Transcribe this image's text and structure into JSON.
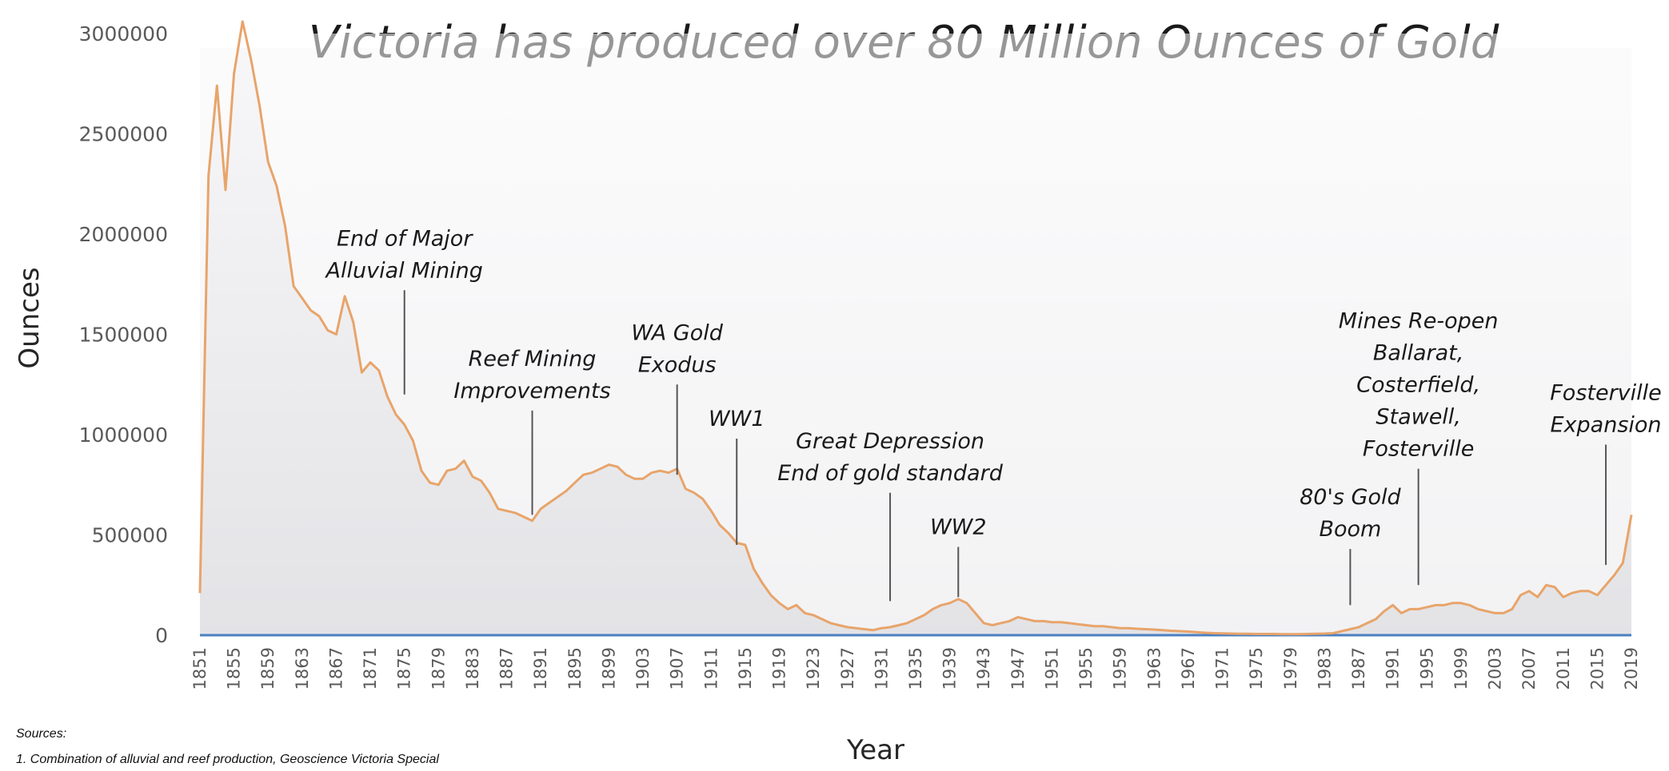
{
  "chart_data": {
    "type": "area",
    "title": "Victoria has produced over 80 Million Ounces of Gold",
    "xlabel": "Year",
    "ylabel": "Ounces",
    "ylim": [
      0,
      3000000
    ],
    "xlim": [
      1851,
      2019
    ],
    "yticks": [
      "3000000",
      "2500000",
      "2000000",
      "1500000",
      "1000000",
      "500000",
      "0"
    ],
    "xticks": [
      "1851",
      "1855",
      "1859",
      "1863",
      "1867",
      "1871",
      "1875",
      "1879",
      "1883",
      "1887",
      "1891",
      "1895",
      "1899",
      "1903",
      "1907",
      "1911",
      "1915",
      "1919",
      "1923",
      "1927",
      "1931",
      "1935",
      "1939",
      "1943",
      "1947",
      "1951",
      "1955",
      "1959",
      "1963",
      "1967",
      "1971",
      "1975",
      "1979",
      "1983",
      "1987",
      "1991",
      "1995",
      "1999",
      "2003",
      "2007",
      "2011",
      "2015",
      "2019"
    ],
    "grid": false,
    "colors": {
      "line": "#e8a46a",
      "fill_top": "#f0f0f2",
      "axis": "#4a7fc0"
    },
    "series": [
      {
        "x": [
          1851,
          1852,
          1853,
          1854,
          1855,
          1856,
          1857,
          1858,
          1859,
          1860,
          1861,
          1862,
          1863,
          1864,
          1865,
          1866,
          1867,
          1868,
          1869,
          1870,
          1871,
          1872,
          1873,
          1874,
          1875,
          1876,
          1877,
          1878,
          1879,
          1880,
          1881,
          1882,
          1883,
          1884,
          1885,
          1886,
          1887,
          1888,
          1889,
          1890,
          1891,
          1892,
          1893,
          1894,
          1895,
          1896,
          1897,
          1898,
          1899,
          1900,
          1901,
          1902,
          1903,
          1904,
          1905,
          1906,
          1907,
          1908,
          1909,
          1910,
          1911,
          1912,
          1913,
          1914,
          1915,
          1916,
          1917,
          1918,
          1919,
          1920,
          1921,
          1922,
          1923,
          1924,
          1925,
          1926,
          1927,
          1928,
          1929,
          1930,
          1931,
          1932,
          1933,
          1934,
          1935,
          1936,
          1937,
          1938,
          1939,
          1940,
          1941,
          1942,
          1943,
          1944,
          1945,
          1946,
          1947,
          1948,
          1949,
          1950,
          1951,
          1952,
          1953,
          1954,
          1955,
          1956,
          1957,
          1958,
          1959,
          1960,
          1961,
          1962,
          1963,
          1964,
          1965,
          1966,
          1967,
          1968,
          1969,
          1970,
          1971,
          1972,
          1973,
          1974,
          1975,
          1976,
          1977,
          1978,
          1979,
          1980,
          1981,
          1982,
          1983,
          1984,
          1985,
          1986,
          1987,
          1988,
          1989,
          1990,
          1991,
          1992,
          1993,
          1994,
          1995,
          1996,
          1997,
          1998,
          1999,
          2000,
          2001,
          2002,
          2003,
          2004,
          2005,
          2006,
          2007,
          2008,
          2009,
          2010,
          2011,
          2012,
          2013,
          2014,
          2015,
          2016,
          2017,
          2018,
          2019
        ],
        "values": [
          210000,
          2290000,
          2740000,
          2220000,
          2800000,
          3060000,
          2870000,
          2640000,
          2360000,
          2240000,
          2040000,
          1740000,
          1680000,
          1620000,
          1590000,
          1520000,
          1500000,
          1690000,
          1560000,
          1310000,
          1360000,
          1320000,
          1190000,
          1100000,
          1050000,
          970000,
          820000,
          760000,
          750000,
          820000,
          830000,
          870000,
          790000,
          770000,
          710000,
          630000,
          620000,
          610000,
          590000,
          570000,
          630000,
          660000,
          690000,
          720000,
          760000,
          800000,
          810000,
          830000,
          850000,
          840000,
          800000,
          780000,
          780000,
          810000,
          820000,
          810000,
          830000,
          730000,
          710000,
          680000,
          620000,
          550000,
          510000,
          460000,
          450000,
          330000,
          260000,
          200000,
          160000,
          130000,
          150000,
          110000,
          100000,
          80000,
          60000,
          50000,
          40000,
          35000,
          30000,
          25000,
          35000,
          40000,
          50000,
          60000,
          80000,
          100000,
          130000,
          150000,
          160000,
          180000,
          160000,
          110000,
          60000,
          50000,
          60000,
          70000,
          90000,
          80000,
          70000,
          70000,
          65000,
          65000,
          60000,
          55000,
          50000,
          45000,
          45000,
          40000,
          35000,
          35000,
          32000,
          30000,
          28000,
          25000,
          22000,
          20000,
          18000,
          15000,
          12000,
          10000,
          9000,
          8000,
          7000,
          7000,
          6000,
          6000,
          6000,
          5000,
          5000,
          5000,
          6000,
          7000,
          8000,
          10000,
          20000,
          30000,
          40000,
          60000,
          80000,
          120000,
          150000,
          110000,
          130000,
          130000,
          140000,
          150000,
          150000,
          160000,
          160000,
          150000,
          130000,
          120000,
          110000,
          110000,
          130000,
          200000,
          220000,
          190000,
          250000,
          240000,
          190000,
          210000,
          220000,
          220000,
          200000,
          250000,
          300000,
          360000,
          600000
        ]
      }
    ],
    "annotations": [
      {
        "lines": [
          "End of Major",
          "Alluvial Mining"
        ],
        "year": 1875,
        "y_top": 1720000,
        "y_bottom": 1200000
      },
      {
        "lines": [
          "Reef Mining",
          "Improvements"
        ],
        "year": 1890,
        "y_top": 1120000,
        "y_bottom": 600000
      },
      {
        "lines": [
          "WA Gold",
          "Exodus"
        ],
        "year": 1907,
        "y_top": 1250000,
        "y_bottom": 800000
      },
      {
        "lines": [
          "WW1"
        ],
        "year": 1914,
        "y_top": 980000,
        "y_bottom": 450000
      },
      {
        "lines": [
          "Great Depression",
          "End of gold standard"
        ],
        "year": 1932,
        "y_top": 710000,
        "y_bottom": 170000
      },
      {
        "lines": [
          "WW2"
        ],
        "year": 1940,
        "y_top": 440000,
        "y_bottom": 190000
      },
      {
        "lines": [
          "80's Gold",
          "Boom"
        ],
        "year": 1986,
        "y_top": 430000,
        "y_bottom": 150000
      },
      {
        "lines": [
          "Mines Re-open",
          "Ballarat,",
          "Costerfield,",
          "Stawell,",
          "Fosterville"
        ],
        "year": 1994,
        "y_top": 830000,
        "y_bottom": 250000
      },
      {
        "lines": [
          "Fosterville",
          "Expansion"
        ],
        "year": 2016,
        "y_top": 950000,
        "y_bottom": 350000
      }
    ]
  },
  "sources": {
    "heading": "Sources:",
    "items": [
      "1.   Combination of alluvial and reef production,  Geoscience Victoria Special"
    ]
  }
}
